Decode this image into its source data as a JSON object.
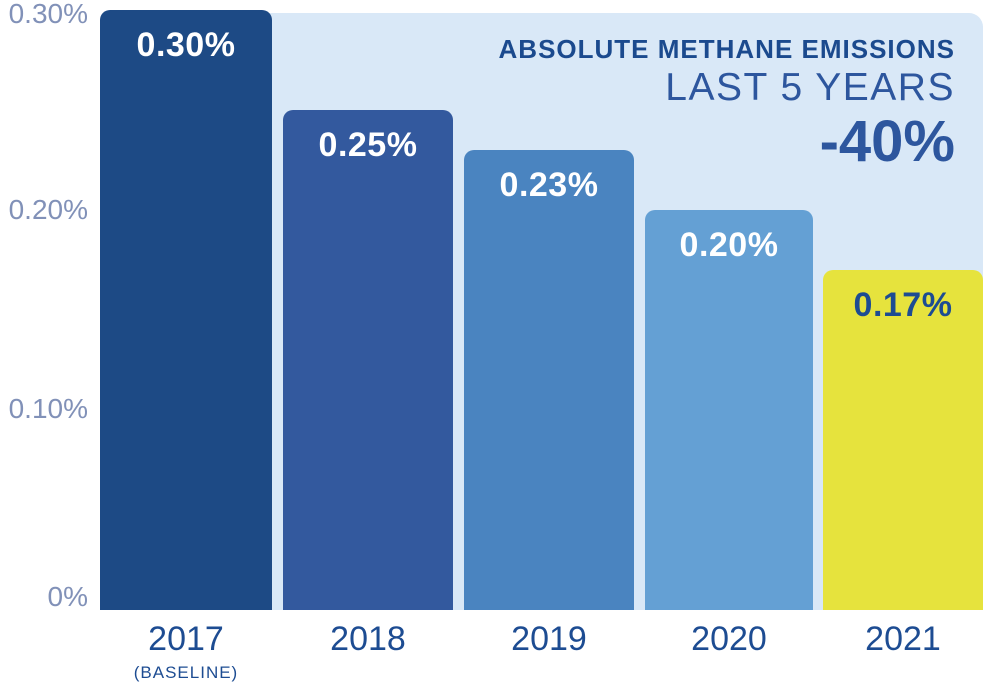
{
  "colors": {
    "page-bg": "#ffffff",
    "panel-bg": "#d9e8f7",
    "axis-tick": "#8191b8",
    "year-label": "#1d4c92",
    "title-navy": "#1b4a8e",
    "accent-navy": "#2d569e"
  },
  "chart_data": {
    "type": "bar",
    "title": "ABSOLUTE METHANE EMISSIONS",
    "subtitle": "LAST 5 YEARS",
    "highlight_value": "-40%",
    "categories": [
      "2017",
      "2018",
      "2019",
      "2020",
      "2021"
    ],
    "baseline_note": "(BASELINE)",
    "values": [
      0.3,
      0.25,
      0.23,
      0.2,
      0.17
    ],
    "value_labels": [
      "0.30%",
      "0.25%",
      "0.23%",
      "0.20%",
      "0.17%"
    ],
    "bar_colors": [
      "#1d4a85",
      "#33599e",
      "#4a84c0",
      "#64a0d4",
      "#e6e33d"
    ],
    "value_label_colors": [
      "#ffffff",
      "#ffffff",
      "#ffffff",
      "#ffffff",
      "#1d4c92"
    ],
    "xlabel": "",
    "ylabel": "",
    "ylim": [
      0,
      0.3
    ],
    "ytick_labels": [
      "0.30%",
      "0.20%",
      "0.10%",
      "0%"
    ],
    "grid": false,
    "legend": false
  }
}
